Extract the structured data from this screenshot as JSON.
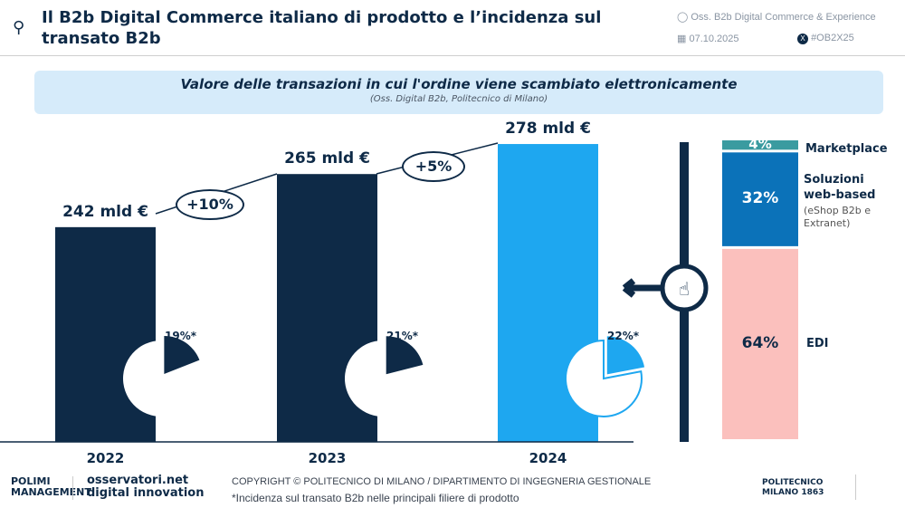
{
  "header": {
    "title": "Il B2b Digital Commerce italiano di prodotto e l’incidenza sul transato B2b",
    "observatory": "Oss. B2b Digital Commerce & Experience",
    "date": "07.10.2025",
    "hashtag": "#OB2X25"
  },
  "chart_data": [
    {
      "type": "bar",
      "title": "Valore delle transazioni in cui l'ordine viene scambiato elettronicamente",
      "subtitle": "(Oss. Digital B2b, Politecnico di Milano)",
      "categories": [
        "2022",
        "2023",
        "2024"
      ],
      "values": [
        242,
        265,
        278
      ],
      "value_labels": [
        "242 mld €",
        "265 mld €",
        "278 mld €"
      ],
      "unit": "mld €",
      "growth_labels": [
        "+10%",
        "+5%"
      ],
      "colors": [
        "#0e2a47",
        "#0e2a47",
        "#1ea7f0"
      ],
      "incidence": {
        "values": [
          19,
          21,
          22
        ],
        "labels": [
          "19%*",
          "21%*",
          "22%*"
        ]
      }
    },
    {
      "type": "bar",
      "stacked": true,
      "series": [
        {
          "name": "Marketplace",
          "value": 4,
          "label": "4%",
          "color": "#3a9ba0"
        },
        {
          "name": "Soluzioni web-based",
          "note": "(eShop B2b e Extranet)",
          "value": 32,
          "label": "32%",
          "color": "#0b72b9"
        },
        {
          "name": "EDI",
          "value": 64,
          "label": "64%",
          "color": "#fbc0bd"
        }
      ]
    }
  ],
  "footer": {
    "logo_polimi": "POLIMI MANAGEMENT",
    "logo_osservatori": "osservatori.net digital innovation",
    "copyright": "COPYRIGHT © POLITECNICO DI MILANO / DIPARTIMENTO DI INGEGNERIA GESTIONALE",
    "note": "*Incidenza sul transato B2b nelle principali filiere di prodotto",
    "logo_politecnico": "POLITECNICO MILANO 1863"
  }
}
